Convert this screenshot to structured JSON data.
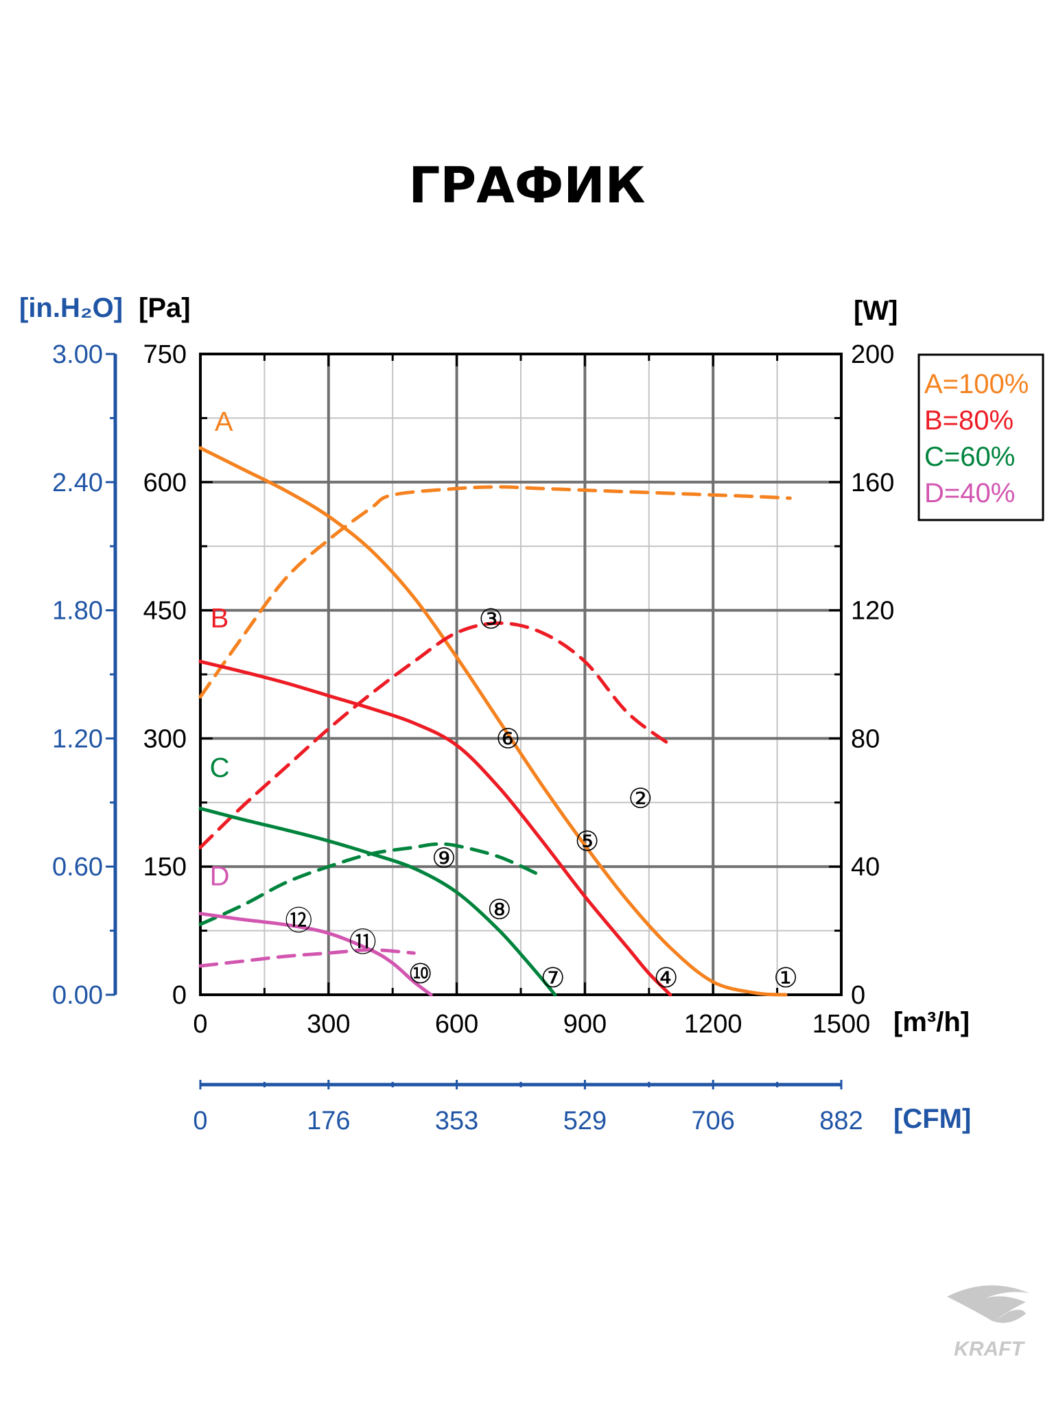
{
  "chart_data": {
    "type": "line",
    "title": "ГРАФИК",
    "xlabel": "[m³/h]",
    "ylabel": "[Pa]",
    "y2label": "[W]",
    "y_alt_label": "[in.H₂O]",
    "x_alt_label": "[CFM]",
    "xlim": [
      0,
      1500
    ],
    "ylim": [
      0,
      750
    ],
    "y2lim": [
      0,
      200
    ],
    "x_ticks": [
      0,
      300,
      600,
      900,
      1200,
      1500
    ],
    "y_ticks": [
      0,
      150,
      300,
      450,
      600,
      750
    ],
    "y2_ticks": [
      0,
      40,
      80,
      120,
      160,
      200
    ],
    "y_alt_ticks": [
      "0.00",
      "0.60",
      "1.20",
      "1.80",
      "2.40",
      "3.00"
    ],
    "x_alt_ticks": [
      "0",
      "176",
      "353",
      "529",
      "706",
      "882"
    ],
    "grid": true,
    "legend_position": "right",
    "legend": [
      {
        "label": "A=100%",
        "color": "#f5821f"
      },
      {
        "label": "B=80%",
        "color": "#ed1c24"
      },
      {
        "label": "C=60%",
        "color": "#00843d"
      },
      {
        "label": "D=40%",
        "color": "#d256b0"
      }
    ],
    "series": [
      {
        "name": "A",
        "color": "#f5821f",
        "kind": "pressure",
        "x": [
          0,
          100,
          200,
          300,
          400,
          500,
          600,
          700,
          800,
          900,
          1000,
          1100,
          1200,
          1300,
          1370
        ],
        "y": [
          640,
          615,
          590,
          560,
          520,
          465,
          395,
          320,
          245,
          175,
          110,
          55,
          15,
          2,
          0
        ]
      },
      {
        "name": "A",
        "color": "#f5821f",
        "kind": "power",
        "x": [
          0,
          100,
          200,
          300,
          400,
          450,
          600,
          700,
          800,
          900,
          1000,
          1100,
          1200,
          1300,
          1380
        ],
        "y": [
          93,
          112,
          130,
          142,
          152,
          156,
          158,
          158.5,
          158,
          157.5,
          157,
          156.5,
          156,
          155.5,
          155
        ]
      },
      {
        "name": "B",
        "color": "#ed1c24",
        "kind": "pressure",
        "x": [
          0,
          100,
          200,
          300,
          400,
          500,
          600,
          700,
          800,
          900,
          1000,
          1050,
          1100
        ],
        "y": [
          390,
          378,
          365,
          350,
          335,
          318,
          292,
          242,
          180,
          115,
          55,
          25,
          0
        ]
      },
      {
        "name": "B",
        "color": "#ed1c24",
        "kind": "power",
        "x": [
          0,
          100,
          200,
          300,
          400,
          500,
          600,
          700,
          800,
          900,
          1000,
          1100
        ],
        "y": [
          46,
          59,
          71,
          83,
          94,
          104,
          113,
          116,
          113,
          104,
          88,
          78
        ]
      },
      {
        "name": "C",
        "color": "#00843d",
        "kind": "pressure",
        "x": [
          0,
          100,
          200,
          300,
          400,
          500,
          600,
          700,
          780,
          830
        ],
        "y": [
          218,
          205,
          193,
          180,
          165,
          148,
          120,
          75,
          30,
          0
        ]
      },
      {
        "name": "C",
        "color": "#00843d",
        "kind": "power",
        "x": [
          0,
          100,
          200,
          300,
          400,
          500,
          550,
          600,
          700,
          800
        ],
        "y": [
          22,
          28,
          35,
          40,
          44,
          46,
          47,
          46.5,
          43,
          37
        ]
      },
      {
        "name": "D",
        "color": "#d256b0",
        "kind": "pressure",
        "x": [
          0,
          100,
          200,
          300,
          400,
          450,
          500,
          540
        ],
        "y": [
          95,
          88,
          82,
          72,
          52,
          37,
          15,
          0
        ]
      },
      {
        "name": "D",
        "color": "#d256b0",
        "kind": "power",
        "x": [
          0,
          100,
          200,
          300,
          400,
          500
        ],
        "y": [
          9,
          10.5,
          12,
          13,
          14,
          13
        ]
      }
    ],
    "curve_labels": [
      {
        "text": "A",
        "x": 55,
        "y": 660,
        "color": "#f5821f"
      },
      {
        "text": "B",
        "x": 45,
        "y": 430,
        "color": "#ed1c24"
      },
      {
        "text": "C",
        "x": 45,
        "y": 255,
        "color": "#00843d"
      },
      {
        "text": "D",
        "x": 45,
        "y": 128,
        "color": "#d256b0"
      }
    ],
    "annotations": [
      {
        "text": "①",
        "x": 1370,
        "y": 20
      },
      {
        "text": "②",
        "x": 1030,
        "y": 230
      },
      {
        "text": "③",
        "x": 680,
        "y": 440
      },
      {
        "text": "④",
        "x": 1090,
        "y": 20
      },
      {
        "text": "⑤",
        "x": 905,
        "y": 180
      },
      {
        "text": "⑥",
        "x": 720,
        "y": 300
      },
      {
        "text": "⑦",
        "x": 825,
        "y": 20
      },
      {
        "text": "⑧",
        "x": 700,
        "y": 100
      },
      {
        "text": "⑨",
        "x": 570,
        "y": 160
      },
      {
        "text": "⑩",
        "x": 515,
        "y": 25
      },
      {
        "text": "⑪",
        "x": 380,
        "y": 62
      },
      {
        "text": "⑫",
        "x": 230,
        "y": 87
      }
    ]
  },
  "logo": {
    "text": "KRAFT"
  }
}
